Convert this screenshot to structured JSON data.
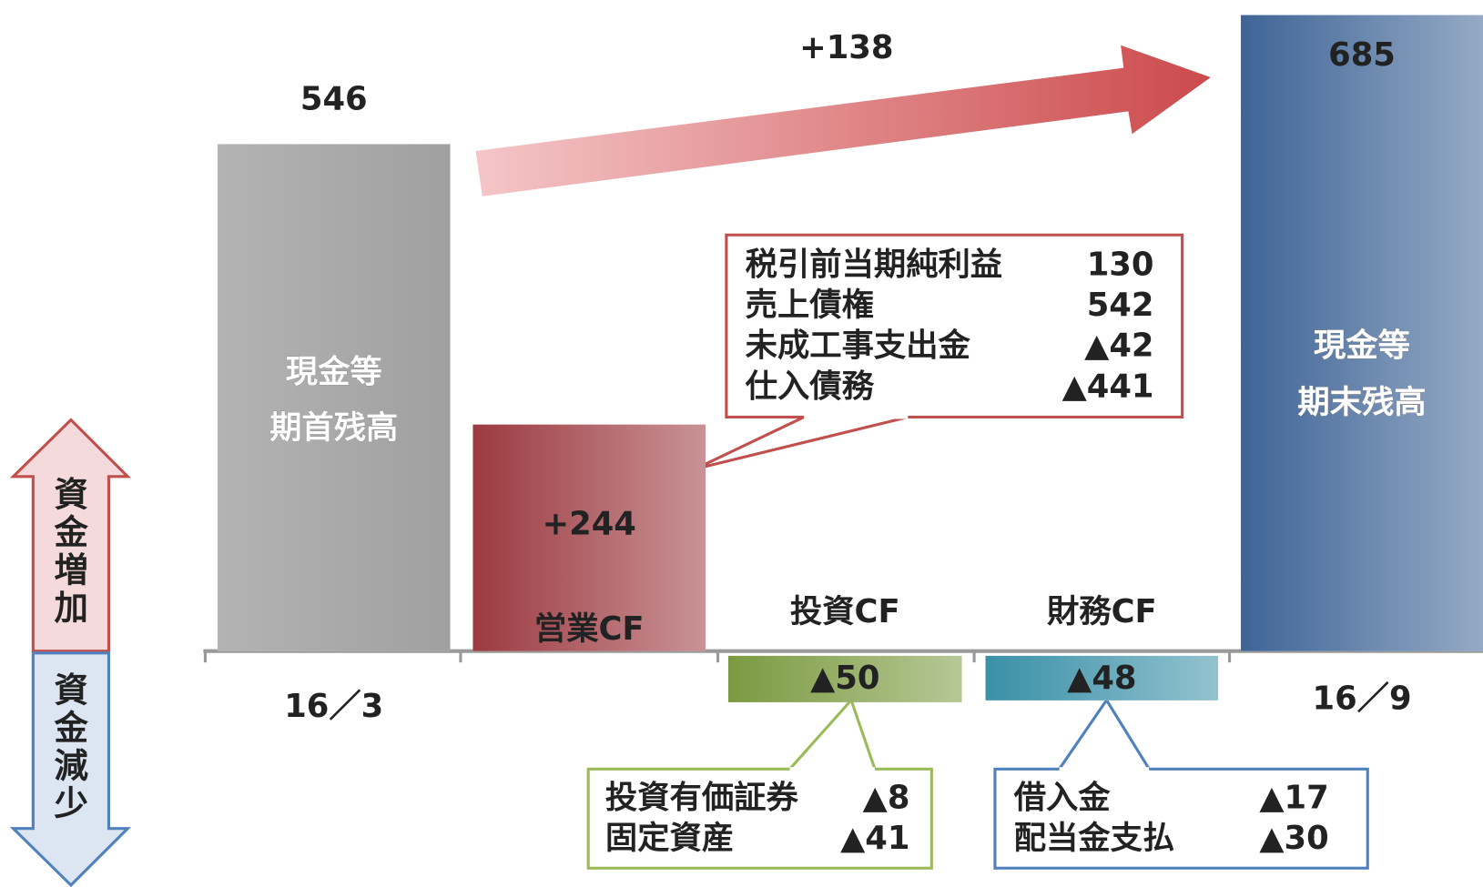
{
  "chart_data": {
    "type": "bar",
    "categories": [
      "16／3",
      null,
      null,
      null,
      "16／9"
    ],
    "bar_labels": [
      [
        "現金等",
        "期首残高"
      ],
      [
        "営業CF"
      ],
      [
        "投資CF"
      ],
      [
        "財務CF"
      ],
      [
        "現金等",
        "期末残高"
      ]
    ],
    "values": [
      546,
      244,
      -50,
      -48,
      685
    ],
    "value_labels": [
      "546",
      "+244",
      "▲50",
      "▲48",
      "685"
    ],
    "colors": [
      "#a0a0a0",
      "#9c3a40",
      "#7a9a40",
      "#3a90a8",
      "#3e6496"
    ],
    "annotation": "+138",
    "side_labels": [
      "資金増加",
      "資金減少"
    ],
    "callouts": [
      {
        "items": [
          {
            "name": "税引前当期純利益",
            "value": "130"
          },
          {
            "name": "売上債権",
            "value": "542"
          },
          {
            "name": "未成工事支出金",
            "value": "▲42"
          },
          {
            "name": "仕入債務",
            "value": "▲441"
          }
        ]
      },
      {
        "items": [
          {
            "name": "投資有価証券",
            "value": "▲8"
          },
          {
            "name": "固定資産",
            "value": "▲41"
          }
        ]
      },
      {
        "items": [
          {
            "name": "借入金",
            "value": "▲17"
          },
          {
            "name": "配当金支払",
            "value": "▲30"
          }
        ]
      }
    ]
  }
}
